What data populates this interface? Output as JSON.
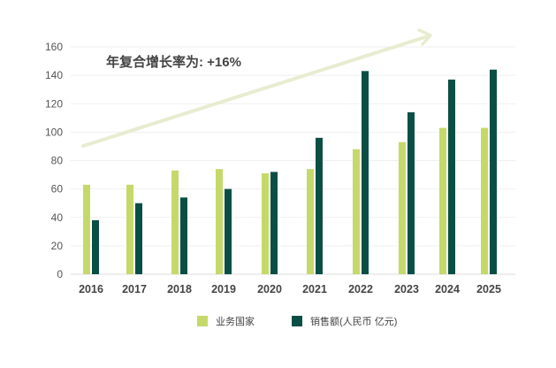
{
  "chart_data": {
    "type": "bar",
    "title": "",
    "xlabel": "",
    "ylabel": "",
    "categories": [
      "2016",
      "2017",
      "2018",
      "2019",
      "2020",
      "2021",
      "2022",
      "2023",
      "2024",
      "2025"
    ],
    "series": [
      {
        "name": "业务国家",
        "color": "#c5d96a",
        "values": [
          63,
          63,
          73,
          74,
          71,
          74,
          88,
          93,
          103,
          103
        ]
      },
      {
        "name": "销售额(人民币 亿元)",
        "color": "#0a4f45",
        "values": [
          38,
          50,
          54,
          60,
          72,
          96,
          143,
          114,
          137,
          144
        ]
      }
    ],
    "ylim": [
      0,
      160
    ],
    "yticks": [
      0,
      20,
      40,
      60,
      80,
      100,
      120,
      140,
      160
    ],
    "grid": true,
    "legend_position": "bottom-center",
    "annotation": {
      "text": "年复合增长率为: +16%",
      "arrow_color": "#e8ecd0"
    }
  }
}
